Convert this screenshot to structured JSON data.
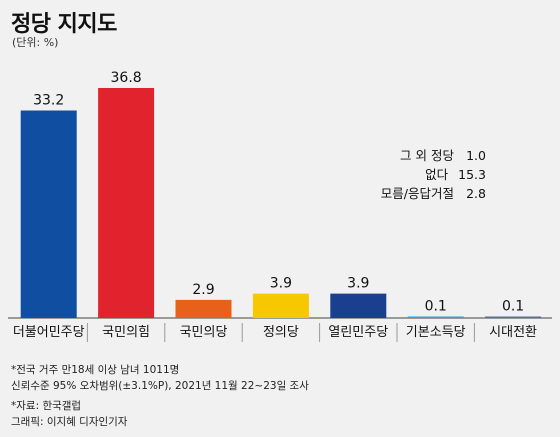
{
  "title": "정당 지지도",
  "unit": "(단위: %)",
  "chart_data": {
    "type": "bar",
    "categories": [
      "더불어민주당",
      "국민의힘",
      "국민의당",
      "정의당",
      "열린민주당",
      "기본소득당",
      "시대전환"
    ],
    "values": [
      33.2,
      36.8,
      2.9,
      3.9,
      3.9,
      0.1,
      0.1
    ],
    "value_labels": [
      "33.2",
      "36.8",
      "2.9",
      "3.9",
      "3.9",
      "0.1",
      "0.1"
    ],
    "colors": [
      "#0f4ea1",
      "#e0232c",
      "#e8611a",
      "#f7c800",
      "#1b3f8f",
      "#2aa0dc",
      "#5a6e8e"
    ],
    "ylim": [
      0,
      36.8
    ],
    "grid": false,
    "legend": "none"
  },
  "others": [
    {
      "label": "그 외 정당",
      "value": "1.0"
    },
    {
      "label": "없다",
      "value": "15.3"
    },
    {
      "label": "모름/응답거절",
      "value": "2.8"
    }
  ],
  "notes": {
    "line1": "*전국 거주 만18세 이상 남녀 1011명",
    "line2": "신뢰수준 95% 오차범위(±3.1%P), 2021년 11월 22~23일 조사",
    "source": "*자료: 한국갤럽",
    "graphic": "그래픽: 이지혜 디자인기자"
  }
}
